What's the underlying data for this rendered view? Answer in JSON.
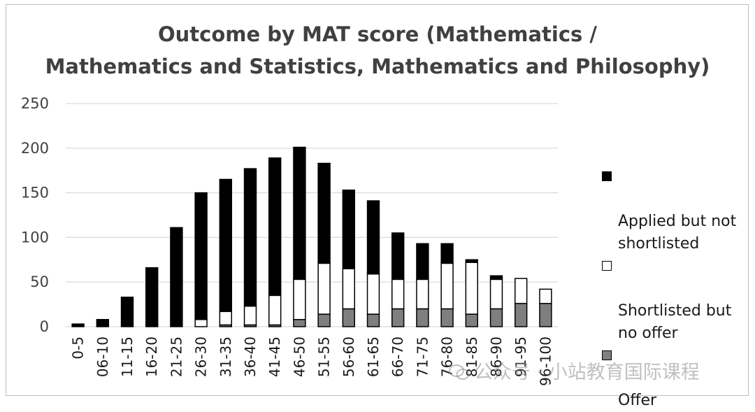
{
  "chart_data": {
    "type": "bar",
    "stacked": true,
    "title": [
      "Outcome by MAT score (Mathematics /",
      "Mathematics and Statistics, Mathematics and Philosophy)"
    ],
    "categories": [
      "0-5",
      "06-10",
      "11-15",
      "16-20",
      "21-25",
      "26-30",
      "31-35",
      "36-40",
      "41-45",
      "46-50",
      "51-55",
      "56-60",
      "61-65",
      "66-70",
      "71-75",
      "76-80",
      "81-85",
      "86-90",
      "91-95",
      "96-100"
    ],
    "series": [
      {
        "name": "Offer",
        "color": "#7f7f7f",
        "values": [
          0,
          0,
          0,
          0,
          0,
          0,
          2,
          2,
          2,
          8,
          14,
          20,
          14,
          20,
          20,
          20,
          14,
          20,
          26,
          26
        ]
      },
      {
        "name": "Shortlisted but no offer",
        "color": "#ffffff",
        "values": [
          0,
          0,
          0,
          1,
          0,
          8,
          15,
          21,
          33,
          45,
          57,
          45,
          45,
          33,
          33,
          51,
          58,
          33,
          28,
          16
        ]
      },
      {
        "name": "Applied but not shortlisted",
        "color": "#000000",
        "values": [
          3,
          8,
          33,
          65,
          111,
          142,
          148,
          154,
          154,
          148,
          112,
          88,
          82,
          52,
          40,
          22,
          3,
          4,
          0,
          0
        ]
      }
    ],
    "ylim": [
      0,
      250
    ],
    "yticks": [
      0,
      50,
      100,
      150,
      200,
      250
    ],
    "xlabel": "",
    "ylabel": "",
    "grid": true,
    "legend_position": "right",
    "legend_order": [
      "Applied but not shortlisted",
      "Shortlisted but no offer",
      "Offer"
    ]
  },
  "legend": {
    "applied": "Applied but not\nshortlisted",
    "shortlisted": "Shortlisted but\nno offer",
    "offer": "Offer"
  },
  "watermark": {
    "text": "公众号 · 小站教育国际课程",
    "icon": "wechat-icon"
  }
}
